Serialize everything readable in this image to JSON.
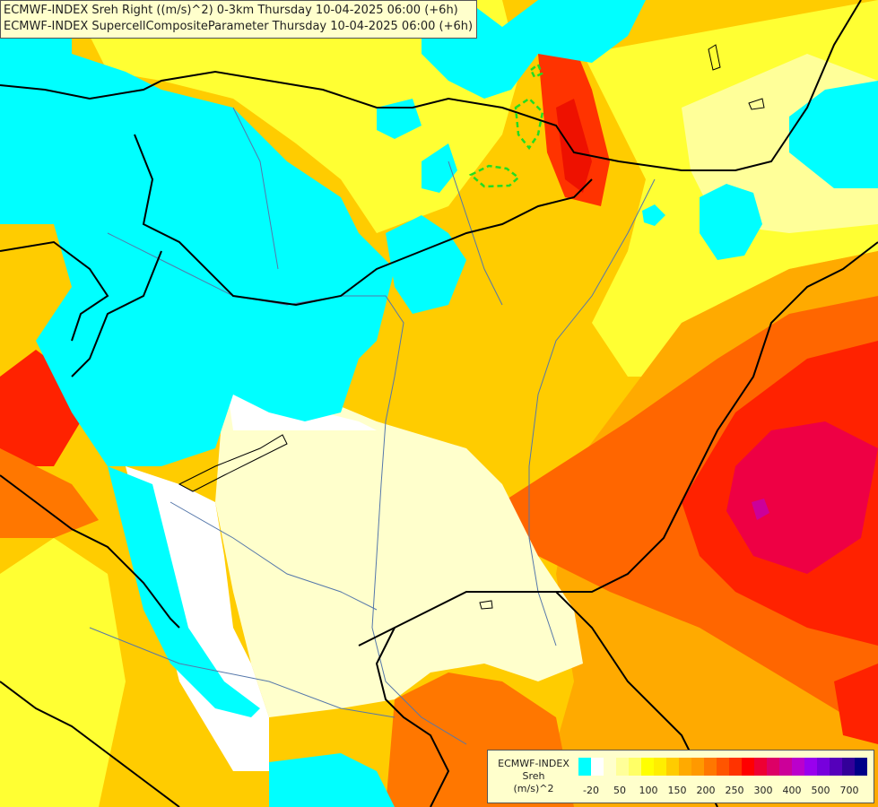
{
  "title": {
    "line1": "ECMWF-INDEX Sreh Right ((m/s)^2) 0-3km Thursday 10-04-2025 06:00 (+6h)",
    "line2": "ECMWF-INDEX SupercellCompositeParameter Thursday 10-04-2025 06:00 (+6h)"
  },
  "legend": {
    "title_line1": "ECMWF-INDEX",
    "title_line2": "Sreh",
    "title_line3": "(m/s)^2",
    "colors": [
      "#00ffff",
      "#ffffff",
      "#ffffcc",
      "#ffff99",
      "#ffff66",
      "#ffff00",
      "#ffee00",
      "#ffcc00",
      "#ffaa00",
      "#ff9900",
      "#ff7700",
      "#ff5500",
      "#ff3300",
      "#ff0000",
      "#ee0033",
      "#dd0066",
      "#cc0099",
      "#bb00cc",
      "#9900ee",
      "#7700dd",
      "#5500bb",
      "#330099",
      "#000088"
    ],
    "labels": [
      "-20",
      "50",
      "100",
      "150",
      "200",
      "250",
      "300",
      "400",
      "500",
      "700"
    ]
  },
  "colors": {
    "cyan": "#00ffff",
    "white": "#ffffff",
    "cream": "#ffffcc",
    "yellow": "#ffff33",
    "gold": "#ffcc00",
    "orange": "#ffaa00",
    "dark_orange": "#ff6600",
    "red": "#ff2200",
    "crimson": "#ee0044",
    "magenta": "#cc0099",
    "border": "#000000",
    "river": "#5577aa",
    "scp_contour": "#22dd22"
  }
}
